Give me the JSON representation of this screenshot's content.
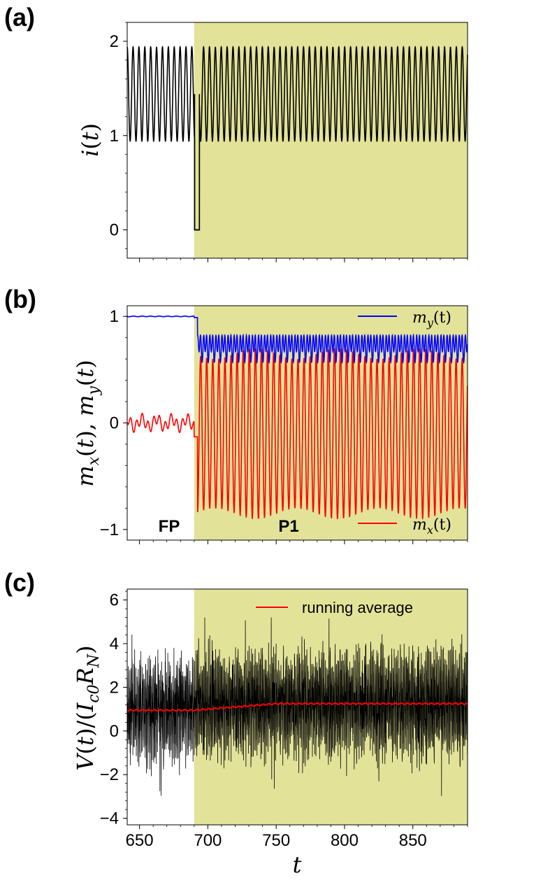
{
  "chart_data": [
    {
      "panel": "(a)",
      "type": "line",
      "ylabel": "i(t)",
      "xlim": [
        641,
        890
      ],
      "ylim": [
        -0.3,
        2.2
      ],
      "yticks": [
        "0",
        "1",
        "2"
      ],
      "ytick_values": [
        0,
        1,
        2
      ],
      "shaded_region": {
        "x_start": 690,
        "x_end": 890,
        "color": "#e2e399"
      },
      "series": [
        {
          "name": "i(t)",
          "color": "#000000",
          "description": "sinusoid oscillating between 0.94 and 1.94 (period ~4.3), dropping to 0 near t=690-694",
          "min": 0.94,
          "max": 1.94,
          "period": 4.3,
          "dip": {
            "x_start": 690.3,
            "x_end": 693.8,
            "value": 0,
            "pulse_top": 1.44
          }
        }
      ]
    },
    {
      "panel": "(b)",
      "type": "line",
      "ylabel": "m_x(t), m_y(t)",
      "xlim": [
        641,
        890
      ],
      "ylim": [
        -1.1,
        1.1
      ],
      "yticks": [
        "−1",
        "0",
        "1"
      ],
      "ytick_values": [
        -1,
        0,
        1
      ],
      "shaded_region": {
        "x_start": 690,
        "x_end": 890,
        "color": "#e2e399"
      },
      "annotations": [
        {
          "text": "FP",
          "x": 665,
          "y": -0.95
        },
        {
          "text": "P1",
          "x": 753,
          "y": -0.95
        }
      ],
      "series": [
        {
          "name": "m_y(t)",
          "color": "#0000ff",
          "description": "~1.0 for t<692, then oscillates between ~0.55 and ~0.85"
        },
        {
          "name": "m_x(t)",
          "color": "#ff0000",
          "description": "small oscillation around 0 (-0.1..0.1) for t<690, then large oscillations between ~-0.85 and ~0.65"
        }
      ],
      "legend": [
        {
          "label": "m_y(t)",
          "color": "#0000ff",
          "position": "top-right"
        },
        {
          "label": "m_x(t)",
          "color": "#ff0000",
          "position": "bottom-right"
        }
      ]
    },
    {
      "panel": "(c)",
      "type": "line",
      "ylabel": "V(t)/(I_c0 R_N)",
      "xlabel": "t",
      "xlim": [
        641,
        890
      ],
      "ylim": [
        -4.3,
        6.5
      ],
      "yticks": [
        "−4",
        "−2",
        "0",
        "2",
        "4",
        "6"
      ],
      "ytick_values": [
        -4,
        -2,
        0,
        2,
        4,
        6
      ],
      "xticks": [
        "650",
        "700",
        "750",
        "800",
        "850"
      ],
      "xtick_values": [
        650,
        700,
        750,
        800,
        850
      ],
      "shaded_region": {
        "x_start": 690,
        "x_end": 890,
        "color": "#e2e399"
      },
      "series": [
        {
          "name": "V(t)",
          "color": "#000000",
          "description": "dense noisy signal roughly between -2.5 and 4.5"
        },
        {
          "name": "running average",
          "color": "#ff0000",
          "description": "~0.95 at t=641 rising slowly to ~1.25 at t=890"
        }
      ],
      "legend": [
        {
          "label": "running average",
          "color": "#ff0000",
          "position": "top-right"
        }
      ]
    }
  ],
  "labels": {
    "panel_a": "(a)",
    "panel_b": "(b)",
    "panel_c": "(c)",
    "region_fp": "FP",
    "region_p1": "P1",
    "legend_my": "m",
    "legend_my_sub": "y",
    "legend_my_arg": "(t)",
    "legend_mx": "m",
    "legend_mx_sub": "x",
    "legend_mx_arg": "(t)",
    "legend_running": "running average",
    "xlabel_c": "t"
  },
  "colors": {
    "shade": "#e2e399",
    "black": "#000000",
    "red": "#ff0000",
    "blue": "#0000ff"
  }
}
